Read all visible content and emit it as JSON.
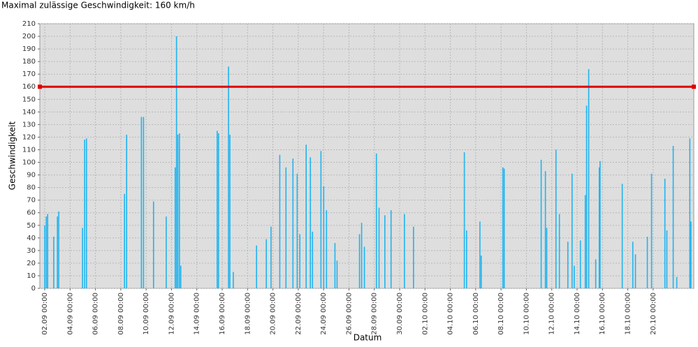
{
  "chart_data": {
    "type": "stem",
    "title": "Maximal zulässige Geschwindigkeit: 160 km/h",
    "x_label": "Datum",
    "y_label": "Geschwindigkeit",
    "color": "#1eb4f0",
    "x": [
      "02.09 00:00",
      "02.09 03:00",
      "02.09 05:30",
      "02.09 17:00",
      "03.09 00:00",
      "03.09 02:30",
      "04.09 23:30",
      "05.09 03:30",
      "05.09 07:00",
      "08.09 07:00",
      "08.09 11:00",
      "09.09 15:00",
      "09.09 19:00",
      "10.09 14:00",
      "11.09 14:00",
      "12.09 07:00",
      "12.09 09:30",
      "12.09 12:00",
      "12.09 15:00",
      "12.09 17:30",
      "15.09 14:30",
      "15.09 17:00",
      "16.09 12:00",
      "16.09 14:30",
      "16.09 21:00",
      "18.09 17:00",
      "19.09 11:30",
      "19.09 20:30",
      "20.09 13:00",
      "21.09 00:45",
      "21.09 14:00",
      "21.09 22:00",
      "22.09 03:00",
      "22.09 15:00",
      "22.09 23:00",
      "23.09 03:00",
      "23.09 19:00",
      "24.09 00:15",
      "24.09 05:30",
      "24.09 21:30",
      "25.09 01:30",
      "26.09 20:00",
      "27.09 00:00",
      "27.09 05:15",
      "28.09 04:00",
      "28.09 09:00",
      "28.09 20:00",
      "29.09 07:45",
      "30.09 09:00",
      "01.10 02:15",
      "05.10 02:30",
      "05.10 06:45",
      "06.10 08:00",
      "06.10 10:30",
      "08.10 03:30",
      "08.10 06:00",
      "11.10 04:00",
      "11.10 12:00",
      "11.10 14:30",
      "12.10 08:00",
      "12.10 14:30",
      "13.10 06:30",
      "13.10 14:30",
      "13.10 18:30",
      "14.10 06:15",
      "14.10 15:30",
      "14.10 18:00",
      "14.10 22:00",
      "15.10 11:15",
      "15.10 18:00",
      "15.10 19:30",
      "17.10 13:30",
      "18.10 09:30",
      "18.10 14:30",
      "19.10 13:00",
      "19.10 21:00",
      "20.10 22:15",
      "21.10 02:00",
      "21.10 14:00",
      "21.10 20:45",
      "22.10 21:30",
      "22.10 23:30"
    ],
    "values": [
      50,
      57,
      59,
      41,
      57,
      61,
      48,
      118,
      119,
      75,
      122,
      136,
      136,
      69,
      57,
      96,
      200,
      122,
      123,
      18,
      125,
      123,
      176,
      122,
      13,
      34,
      39,
      49,
      106,
      96,
      103,
      91,
      43,
      114,
      104,
      45,
      109,
      81,
      62,
      36,
      22,
      43,
      52,
      33,
      107,
      64,
      58,
      62,
      59,
      49,
      108,
      46,
      53,
      26,
      96,
      95,
      102,
      93,
      48,
      110,
      59,
      37,
      91,
      18,
      38,
      74,
      145,
      174,
      23,
      96,
      101,
      83,
      37,
      27,
      41,
      91,
      87,
      46,
      113,
      9,
      119,
      53
    ],
    "threshold": {
      "value": 160,
      "color": "#e00000"
    },
    "xlim": [
      "01.09 14:40",
      "23.10 05:00"
    ],
    "xticks": [
      "02.09 00:00",
      "04.09 00:00",
      "06.09 00:00",
      "08.09 00:00",
      "10.09 00:00",
      "12.09 00:00",
      "14.09 00:00",
      "16.09 00:00",
      "18.09 00:00",
      "20.09 00:00",
      "22.09 00:00",
      "24.09 00:00",
      "26.09 00:00",
      "28.09 00:00",
      "30.09 00:00",
      "02.10 00:00",
      "04.10 00:00",
      "06.10 00:00",
      "08.10 00:00",
      "10.10 00:00",
      "12.10 00:00",
      "14.10 00:00",
      "16.10 00:00",
      "18.10 00:00",
      "20.10 00:00"
    ],
    "ylim": [
      0,
      210
    ],
    "yticks": [
      0,
      10,
      20,
      30,
      40,
      50,
      60,
      70,
      80,
      90,
      100,
      110,
      120,
      130,
      140,
      150,
      160,
      170,
      180,
      190,
      200,
      210
    ],
    "grid": true
  }
}
